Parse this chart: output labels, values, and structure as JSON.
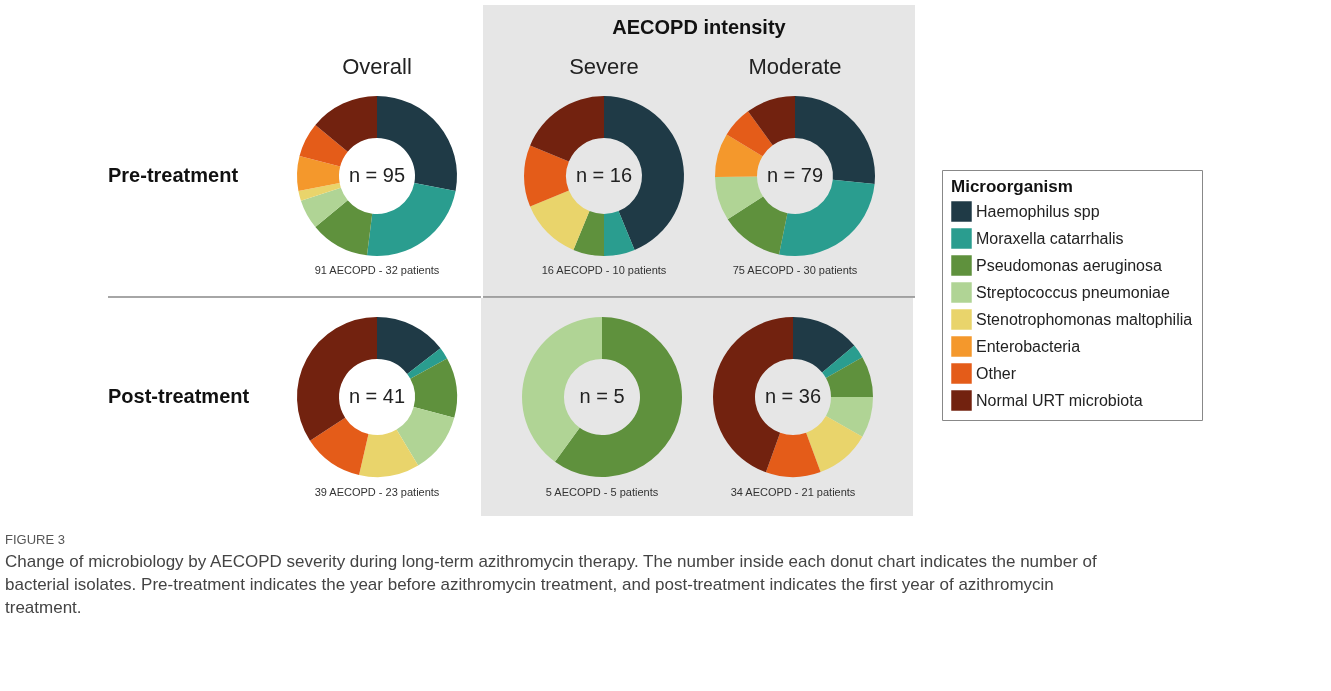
{
  "chart_data": [
    {
      "type": "donut",
      "title": "Overall",
      "ylabel": "Pre-treatment",
      "legend": "right",
      "legend_title": "Microorganism",
      "categories": [
        "Haemophilus spp",
        "Moraxella catarrhalis",
        "Pseudomonas aeruginosa",
        "Streptococcus pneumoniae",
        "Stenotrophomonas maltophilia",
        "Enterobacteria",
        "Other",
        "Normal URT microbiota"
      ],
      "values": [
        28,
        24,
        12,
        6,
        2,
        7,
        7,
        14
      ],
      "colors": [
        "#1f3a46",
        "#2a9d8f",
        "#5f913d",
        "#b0d495",
        "#e9d46b",
        "#f4982c",
        "#e45c19",
        "#72220f"
      ],
      "annotations": [
        "n = 95",
        "91 AECOPD - 32 patients",
        "FIGURE 3",
        "Change of microbiology by AECOPD severity during long-term azithromycin therapy. The number inside each donut chart indicates the number of bacterial isolates. Pre-treatment indicates the year before azithromycin treatment, and post-treatment indicates the first year of azithromycin treatment."
      ]
    },
    {
      "type": "donut",
      "title": "Severe",
      "categories": [
        null,
        null,
        null,
        null,
        null,
        null
      ],
      "values": [
        43.75,
        6.25,
        6.25,
        12.5,
        12.5,
        18.75
      ],
      "colors": [
        "#1f3a46",
        "#2a9d8f",
        "#5f913d",
        "#e9d46b",
        "#e45c19",
        "#72220f"
      ],
      "annotations": [
        "n = 16",
        "16 AECOPD - 10 patients",
        "AECOPD intensity"
      ]
    },
    {
      "type": "donut",
      "title": "Moderate",
      "categories": [
        null,
        null,
        null,
        null,
        null,
        null,
        null
      ],
      "values": [
        26.6,
        26.6,
        12.7,
        8.9,
        8.9,
        6.3,
        10.0
      ],
      "colors": [
        "#1f3a46",
        "#2a9d8f",
        "#5f913d",
        "#b0d495",
        "#f4982c",
        "#e45c19",
        "#72220f"
      ],
      "annotations": [
        "n = 79",
        "75 AECOPD - 30 patients"
      ]
    },
    {
      "type": "donut",
      "ylabel": "Post-treatment",
      "categories": [
        null,
        null,
        null,
        null,
        null,
        null,
        null
      ],
      "values": [
        14.6,
        2.4,
        12.2,
        12.2,
        12.2,
        12.2,
        34.2
      ],
      "colors": [
        "#1f3a46",
        "#2a9d8f",
        "#5f913d",
        "#b0d495",
        "#e9d46b",
        "#e45c19",
        "#72220f"
      ],
      "annotations": [
        "n = 41",
        "39 AECOPD - 23 patients"
      ]
    },
    {
      "type": "donut",
      "categories": [
        null,
        null
      ],
      "values": [
        60,
        40
      ],
      "colors": [
        "#5f913d",
        "#b0d495"
      ],
      "annotations": [
        "n = 5",
        "5 AECOPD - 5 patients"
      ]
    },
    {
      "type": "donut",
      "categories": [
        null,
        null,
        null,
        null,
        null,
        null,
        null
      ],
      "values": [
        13.9,
        2.8,
        8.3,
        8.3,
        11.1,
        11.1,
        44.5
      ],
      "colors": [
        "#1f3a46",
        "#2a9d8f",
        "#5f913d",
        "#b0d495",
        "#e9d46b",
        "#e45c19",
        "#72220f"
      ],
      "annotations": [
        "n = 36",
        "34 AECOPD - 21 patients"
      ]
    }
  ]
}
